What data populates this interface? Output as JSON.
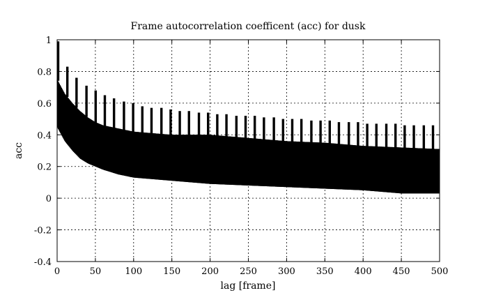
{
  "chart_data": {
    "type": "line",
    "title": "Frame autocorrelation coefficent (acc) for dusk",
    "xlabel": "lag [frame]",
    "ylabel": "acc",
    "xlim": [
      0,
      500
    ],
    "ylim": [
      -0.4,
      1
    ],
    "xticks": [
      0,
      50,
      100,
      150,
      200,
      250,
      300,
      350,
      400,
      450,
      500
    ],
    "yticks": [
      -0.4,
      -0.2,
      0,
      0.2,
      0.4,
      0.6,
      0.8,
      1
    ],
    "ytick_labels": [
      "-0.4",
      "-0.2",
      "0",
      "0.2",
      "0.4",
      "0.6",
      "0.8",
      "1"
    ],
    "grid": true,
    "legend": "none",
    "line_color": "#000000",
    "series": [
      {
        "x": [
          0,
          10,
          20,
          30,
          40,
          50,
          60,
          80,
          100,
          125,
          150,
          175,
          200,
          250,
          300,
          350,
          400,
          450,
          500
        ],
        "upper_envelope": [
          0.75,
          0.66,
          0.6,
          0.55,
          0.51,
          0.48,
          0.46,
          0.44,
          0.42,
          0.41,
          0.4,
          0.4,
          0.4,
          0.38,
          0.36,
          0.35,
          0.33,
          0.32,
          0.31
        ],
        "lower_envelope": [
          0.45,
          0.36,
          0.3,
          0.25,
          0.22,
          0.2,
          0.18,
          0.15,
          0.13,
          0.12,
          0.11,
          0.1,
          0.09,
          0.08,
          0.07,
          0.06,
          0.05,
          0.03,
          0.03
        ]
      }
    ],
    "peaks": {
      "x": [
        0,
        12,
        24,
        37,
        49,
        61,
        73,
        86,
        98,
        110,
        122,
        135,
        147,
        159,
        171,
        184,
        196,
        208,
        220,
        233,
        245,
        257,
        269,
        282,
        294,
        306,
        318,
        331,
        343,
        355,
        367,
        380,
        392,
        404,
        416,
        429,
        441,
        453,
        465,
        478,
        490
      ],
      "y": [
        0.99,
        0.83,
        0.76,
        0.71,
        0.68,
        0.65,
        0.63,
        0.61,
        0.6,
        0.58,
        0.57,
        0.57,
        0.56,
        0.55,
        0.55,
        0.54,
        0.54,
        0.53,
        0.53,
        0.52,
        0.52,
        0.52,
        0.51,
        0.51,
        0.5,
        0.5,
        0.5,
        0.49,
        0.49,
        0.49,
        0.48,
        0.48,
        0.48,
        0.47,
        0.47,
        0.47,
        0.47,
        0.46,
        0.46,
        0.46,
        0.46
      ]
    }
  }
}
